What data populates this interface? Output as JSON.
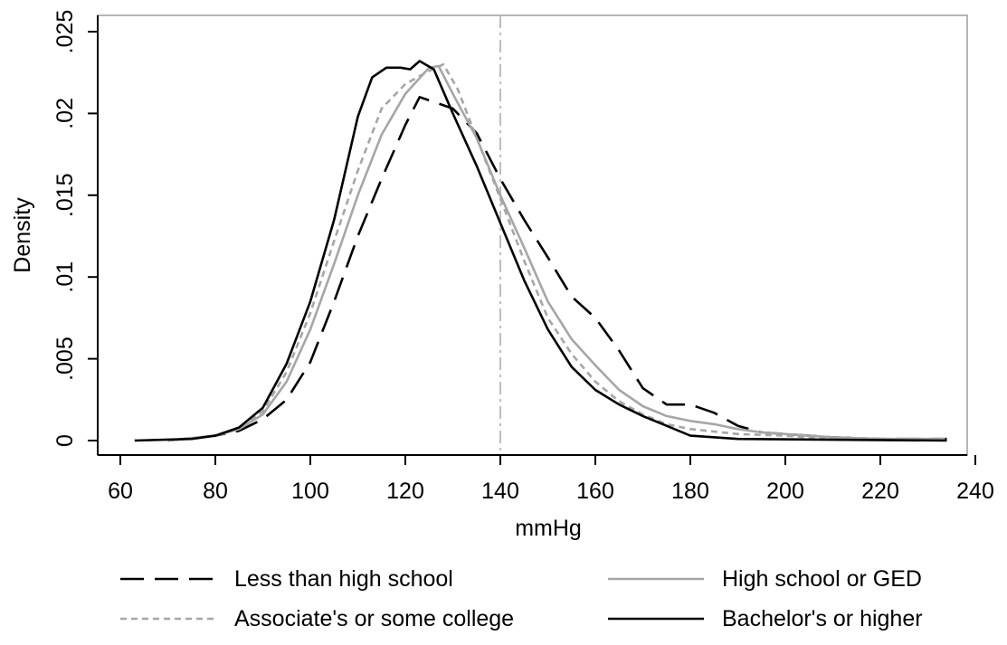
{
  "chart_data": {
    "type": "line",
    "title": "",
    "xlabel": "mmHg",
    "ylabel": "Density",
    "xlim": [
      60,
      240
    ],
    "ylim": [
      0,
      0.025
    ],
    "x_ticks": [
      60,
      80,
      100,
      120,
      140,
      160,
      180,
      200,
      220,
      240
    ],
    "x_tick_labels": [
      "60",
      "80",
      "100",
      "120",
      "140",
      "160",
      "180",
      "200",
      "220",
      "240"
    ],
    "y_ticks": [
      0,
      0.005,
      0.01,
      0.015,
      0.02,
      0.025
    ],
    "y_tick_labels": [
      "0",
      ".005",
      ".01",
      ".015",
      ".02",
      ".025"
    ],
    "grid": false,
    "legend_position": "bottom",
    "reference_line": {
      "x": 140,
      "style": "dash-dot",
      "color": "#bdbdbd"
    },
    "series": [
      {
        "name": "Less than high school",
        "style": "long-dash",
        "color": "#000000",
        "points": [
          [
            70,
            0
          ],
          [
            80,
            0.0003
          ],
          [
            85,
            0.0006
          ],
          [
            90,
            0.0013
          ],
          [
            95,
            0.0025
          ],
          [
            100,
            0.0048
          ],
          [
            105,
            0.0085
          ],
          [
            110,
            0.0125
          ],
          [
            115,
            0.016
          ],
          [
            120,
            0.0193
          ],
          [
            123,
            0.021
          ],
          [
            126,
            0.0207
          ],
          [
            130,
            0.0203
          ],
          [
            135,
            0.0188
          ],
          [
            140,
            0.016
          ],
          [
            145,
            0.0135
          ],
          [
            150,
            0.0112
          ],
          [
            155,
            0.0088
          ],
          [
            160,
            0.0075
          ],
          [
            165,
            0.0055
          ],
          [
            170,
            0.0032
          ],
          [
            175,
            0.0022
          ],
          [
            180,
            0.0022
          ],
          [
            185,
            0.0017
          ],
          [
            190,
            0.0009
          ],
          [
            195,
            0.0005
          ],
          [
            200,
            0.0004
          ],
          [
            210,
            0.0002
          ],
          [
            220,
            0.0001
          ],
          [
            234,
            0.0001
          ]
        ]
      },
      {
        "name": "High school or GED",
        "style": "solid",
        "color": "#a6a6a6",
        "points": [
          [
            70,
            0
          ],
          [
            80,
            0.0003
          ],
          [
            85,
            0.0007
          ],
          [
            90,
            0.0016
          ],
          [
            95,
            0.0036
          ],
          [
            100,
            0.0068
          ],
          [
            105,
            0.0108
          ],
          [
            110,
            0.015
          ],
          [
            115,
            0.0187
          ],
          [
            120,
            0.0212
          ],
          [
            125,
            0.0228
          ],
          [
            127,
            0.0229
          ],
          [
            130,
            0.0212
          ],
          [
            135,
            0.0185
          ],
          [
            140,
            0.015
          ],
          [
            145,
            0.0118
          ],
          [
            150,
            0.0085
          ],
          [
            155,
            0.0062
          ],
          [
            160,
            0.0046
          ],
          [
            165,
            0.0031
          ],
          [
            170,
            0.0021
          ],
          [
            175,
            0.0015
          ],
          [
            180,
            0.0012
          ],
          [
            185,
            0.001
          ],
          [
            190,
            0.0007
          ],
          [
            195,
            0.0005
          ],
          [
            200,
            0.0004
          ],
          [
            210,
            0.0002
          ],
          [
            220,
            0.0001
          ],
          [
            233,
            0.0001
          ]
        ]
      },
      {
        "name": "Associate's or some college",
        "style": "short-dash",
        "color": "#a6a6a6",
        "points": [
          [
            70,
            0
          ],
          [
            80,
            0.0003
          ],
          [
            85,
            0.0007
          ],
          [
            90,
            0.0018
          ],
          [
            95,
            0.0042
          ],
          [
            100,
            0.0078
          ],
          [
            105,
            0.0122
          ],
          [
            110,
            0.0165
          ],
          [
            115,
            0.0203
          ],
          [
            120,
            0.0218
          ],
          [
            125,
            0.0226
          ],
          [
            128,
            0.023
          ],
          [
            131,
            0.0215
          ],
          [
            135,
            0.0185
          ],
          [
            140,
            0.0148
          ],
          [
            145,
            0.011
          ],
          [
            150,
            0.0075
          ],
          [
            155,
            0.0053
          ],
          [
            160,
            0.0036
          ],
          [
            165,
            0.0024
          ],
          [
            170,
            0.0016
          ],
          [
            175,
            0.001
          ],
          [
            180,
            0.0007
          ],
          [
            190,
            0.0004
          ],
          [
            200,
            0.0003
          ],
          [
            210,
            0.0001
          ],
          [
            234,
            0.0001
          ]
        ]
      },
      {
        "name": "Bachelor's or higher",
        "style": "solid",
        "color": "#000000",
        "points": [
          [
            63,
            0
          ],
          [
            75,
            0.0001
          ],
          [
            80,
            0.0003
          ],
          [
            85,
            0.0008
          ],
          [
            90,
            0.002
          ],
          [
            95,
            0.0047
          ],
          [
            100,
            0.0085
          ],
          [
            105,
            0.0135
          ],
          [
            110,
            0.0198
          ],
          [
            113,
            0.0222
          ],
          [
            116,
            0.0228
          ],
          [
            119,
            0.0228
          ],
          [
            121,
            0.0227
          ],
          [
            123,
            0.0232
          ],
          [
            126,
            0.0227
          ],
          [
            130,
            0.02
          ],
          [
            135,
            0.0168
          ],
          [
            140,
            0.0133
          ],
          [
            145,
            0.0098
          ],
          [
            150,
            0.0068
          ],
          [
            155,
            0.0045
          ],
          [
            160,
            0.0031
          ],
          [
            165,
            0.0022
          ],
          [
            170,
            0.0015
          ],
          [
            175,
            0.0009
          ],
          [
            180,
            0.0003
          ],
          [
            190,
            0.0001
          ],
          [
            234,
            0
          ]
        ]
      }
    ]
  }
}
